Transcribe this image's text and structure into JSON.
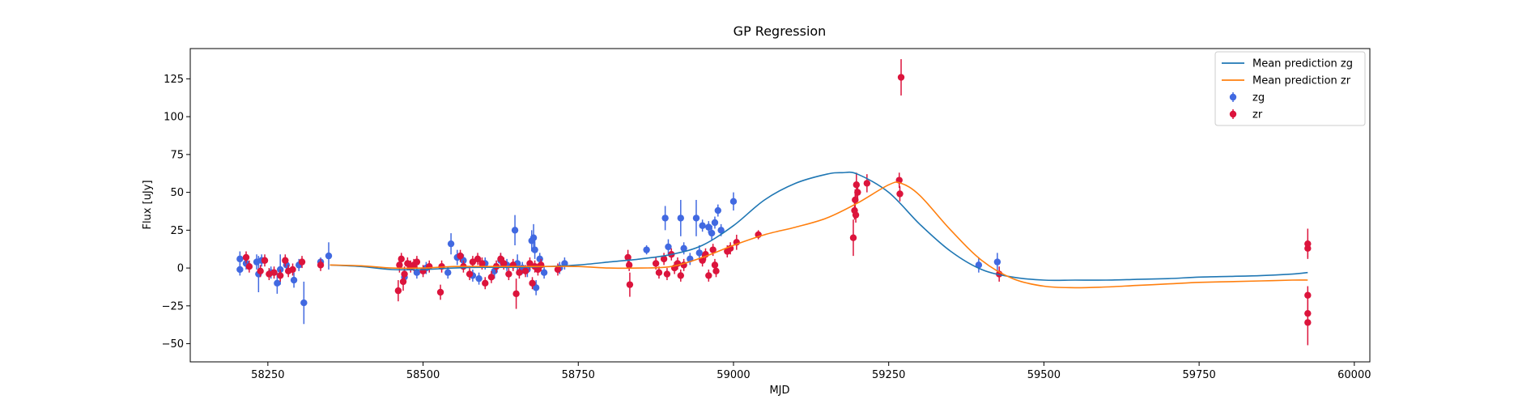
{
  "chart_data": {
    "type": "scatter",
    "title": "GP Regression",
    "xlabel": "MJD",
    "ylabel": "Flux [uJy]",
    "xlim": [
      58125,
      60025
    ],
    "ylim": [
      -62,
      145
    ],
    "xticks": [
      58250,
      58500,
      58750,
      59000,
      59250,
      59500,
      59750,
      60000
    ],
    "yticks": [
      -50,
      -25,
      0,
      25,
      50,
      75,
      100,
      125
    ],
    "grid": false,
    "legend_position": "top-right",
    "legend": [
      {
        "label": "Mean prediction zg",
        "kind": "line",
        "color": "#1f77b4"
      },
      {
        "label": "Mean prediction zr",
        "kind": "line",
        "color": "#ff7f0e"
      },
      {
        "label": "zg",
        "kind": "errorbar",
        "color": "#4169e1"
      },
      {
        "label": "zr",
        "kind": "errorbar",
        "color": "#dc143c"
      }
    ],
    "lines": [
      {
        "name": "Mean prediction zg",
        "color": "#1f77b4",
        "x": [
          58350,
          58400,
          58450,
          58500,
          58550,
          58600,
          58650,
          58700,
          58750,
          58800,
          58850,
          58900,
          58950,
          59000,
          59050,
          59100,
          59150,
          59175,
          59200,
          59250,
          59300,
          59350,
          59400,
          59450,
          59500,
          59550,
          59600,
          59650,
          59700,
          59750,
          59800,
          59850,
          59900,
          59925
        ],
        "y": [
          2,
          1,
          -1,
          -1,
          0,
          0.5,
          0.5,
          1,
          2,
          4,
          6,
          9,
          15,
          28,
          45,
          56,
          62,
          63,
          62,
          50,
          29,
          11,
          -1,
          -6,
          -8,
          -8,
          -8,
          -7.5,
          -7,
          -6,
          -5.5,
          -5,
          -4,
          -3
        ]
      },
      {
        "name": "Mean prediction zr",
        "color": "#ff7f0e",
        "x": [
          58350,
          58400,
          58450,
          58500,
          58550,
          58600,
          58650,
          58700,
          58750,
          58800,
          58850,
          58900,
          58950,
          59000,
          59050,
          59100,
          59150,
          59200,
          59250,
          59270,
          59300,
          59350,
          59400,
          59450,
          59500,
          59550,
          59600,
          59650,
          59700,
          59750,
          59800,
          59850,
          59900,
          59925
        ],
        "y": [
          2,
          1.5,
          0,
          0,
          1,
          1,
          1,
          1,
          1,
          0,
          0,
          1,
          7,
          15,
          22,
          27,
          33,
          43,
          55,
          56,
          48,
          25,
          5,
          -7,
          -12,
          -13,
          -12.5,
          -11.5,
          -10.5,
          -9.5,
          -9,
          -8.5,
          -8,
          -8
        ]
      }
    ],
    "series": [
      {
        "name": "zg",
        "color": "#4169e1",
        "points": [
          {
            "x": 58205,
            "y": 6,
            "err": 5
          },
          {
            "x": 58205,
            "y": -1,
            "err": 4
          },
          {
            "x": 58215,
            "y": 3,
            "err": 4
          },
          {
            "x": 58232,
            "y": 4,
            "err": 5
          },
          {
            "x": 58235,
            "y": -4,
            "err": 12
          },
          {
            "x": 58240,
            "y": 5,
            "err": 4
          },
          {
            "x": 58255,
            "y": -3,
            "err": 4
          },
          {
            "x": 58265,
            "y": -10,
            "err": 7
          },
          {
            "x": 58270,
            "y": -1,
            "err": 10
          },
          {
            "x": 58280,
            "y": 2,
            "err": 4
          },
          {
            "x": 58292,
            "y": -8,
            "err": 5
          },
          {
            "x": 58300,
            "y": 2,
            "err": 4
          },
          {
            "x": 58308,
            "y": -23,
            "err": 14
          },
          {
            "x": 58335,
            "y": 4,
            "err": 3
          },
          {
            "x": 58348,
            "y": 8,
            "err": 9
          },
          {
            "x": 58470,
            "y": -6,
            "err": 5
          },
          {
            "x": 58490,
            "y": -3,
            "err": 4
          },
          {
            "x": 58505,
            "y": 0,
            "err": 4
          },
          {
            "x": 58540,
            "y": -3,
            "err": 4
          },
          {
            "x": 58545,
            "y": 16,
            "err": 7
          },
          {
            "x": 58555,
            "y": 7,
            "err": 5
          },
          {
            "x": 58565,
            "y": 5,
            "err": 4
          },
          {
            "x": 58580,
            "y": -5,
            "err": 4
          },
          {
            "x": 58590,
            "y": -7,
            "err": 4
          },
          {
            "x": 58600,
            "y": 3,
            "err": 4
          },
          {
            "x": 58615,
            "y": -2,
            "err": 5
          },
          {
            "x": 58625,
            "y": 5,
            "err": 5
          },
          {
            "x": 58635,
            "y": 2,
            "err": 4
          },
          {
            "x": 58648,
            "y": 25,
            "err": 10
          },
          {
            "x": 58652,
            "y": 3,
            "err": 6
          },
          {
            "x": 58660,
            "y": 0,
            "err": 4
          },
          {
            "x": 58668,
            "y": -1,
            "err": 5
          },
          {
            "x": 58675,
            "y": 18,
            "err": 7
          },
          {
            "x": 58678,
            "y": 20,
            "err": 9
          },
          {
            "x": 58680,
            "y": 12,
            "err": 6
          },
          {
            "x": 58682,
            "y": -13,
            "err": 5
          },
          {
            "x": 58688,
            "y": 6,
            "err": 4
          },
          {
            "x": 58695,
            "y": -3,
            "err": 4
          },
          {
            "x": 58720,
            "y": 0,
            "err": 4
          },
          {
            "x": 58728,
            "y": 3,
            "err": 4
          },
          {
            "x": 58860,
            "y": 12,
            "err": 3
          },
          {
            "x": 58890,
            "y": 33,
            "err": 8
          },
          {
            "x": 58895,
            "y": 14,
            "err": 5
          },
          {
            "x": 58915,
            "y": 33,
            "err": 12
          },
          {
            "x": 58920,
            "y": 13,
            "err": 4
          },
          {
            "x": 58930,
            "y": 6,
            "err": 4
          },
          {
            "x": 58940,
            "y": 33,
            "err": 12
          },
          {
            "x": 58945,
            "y": 10,
            "err": 5
          },
          {
            "x": 58950,
            "y": 28,
            "err": 4
          },
          {
            "x": 58960,
            "y": 27,
            "err": 4
          },
          {
            "x": 58965,
            "y": 23,
            "err": 5
          },
          {
            "x": 58970,
            "y": 30,
            "err": 4
          },
          {
            "x": 58975,
            "y": 38,
            "err": 4
          },
          {
            "x": 58980,
            "y": 25,
            "err": 4
          },
          {
            "x": 59000,
            "y": 44,
            "err": 6
          },
          {
            "x": 59395,
            "y": 2,
            "err": 5
          },
          {
            "x": 59425,
            "y": 4,
            "err": 6
          }
        ]
      },
      {
        "name": "zr",
        "color": "#dc143c",
        "points": [
          {
            "x": 58215,
            "y": 7,
            "err": 4
          },
          {
            "x": 58220,
            "y": 1,
            "err": 4
          },
          {
            "x": 58238,
            "y": -2,
            "err": 4
          },
          {
            "x": 58245,
            "y": 5,
            "err": 4
          },
          {
            "x": 58252,
            "y": -4,
            "err": 4
          },
          {
            "x": 58260,
            "y": -3,
            "err": 4
          },
          {
            "x": 58270,
            "y": -5,
            "err": 4
          },
          {
            "x": 58278,
            "y": 5,
            "err": 4
          },
          {
            "x": 58283,
            "y": -2,
            "err": 4
          },
          {
            "x": 58290,
            "y": -1,
            "err": 4
          },
          {
            "x": 58305,
            "y": 4,
            "err": 4
          },
          {
            "x": 58335,
            "y": 2,
            "err": 4
          },
          {
            "x": 58460,
            "y": -15,
            "err": 7
          },
          {
            "x": 58462,
            "y": 2,
            "err": 5
          },
          {
            "x": 58465,
            "y": 6,
            "err": 4
          },
          {
            "x": 58468,
            "y": -9,
            "err": 6
          },
          {
            "x": 58470,
            "y": -4,
            "err": 5
          },
          {
            "x": 58475,
            "y": 3,
            "err": 4
          },
          {
            "x": 58480,
            "y": 1,
            "err": 4
          },
          {
            "x": 58485,
            "y": 2,
            "err": 4
          },
          {
            "x": 58490,
            "y": 4,
            "err": 4
          },
          {
            "x": 58500,
            "y": -2,
            "err": 4
          },
          {
            "x": 58510,
            "y": 1,
            "err": 4
          },
          {
            "x": 58528,
            "y": -16,
            "err": 5
          },
          {
            "x": 58530,
            "y": 1,
            "err": 4
          },
          {
            "x": 58560,
            "y": 8,
            "err": 4
          },
          {
            "x": 58565,
            "y": 1,
            "err": 4
          },
          {
            "x": 58575,
            "y": -4,
            "err": 4
          },
          {
            "x": 58580,
            "y": 4,
            "err": 4
          },
          {
            "x": 58588,
            "y": 6,
            "err": 4
          },
          {
            "x": 58595,
            "y": 3,
            "err": 4
          },
          {
            "x": 58600,
            "y": -10,
            "err": 4
          },
          {
            "x": 58610,
            "y": -6,
            "err": 4
          },
          {
            "x": 58618,
            "y": 1,
            "err": 4
          },
          {
            "x": 58625,
            "y": 6,
            "err": 4
          },
          {
            "x": 58630,
            "y": 3,
            "err": 4
          },
          {
            "x": 58638,
            "y": -4,
            "err": 4
          },
          {
            "x": 58645,
            "y": 2,
            "err": 4
          },
          {
            "x": 58650,
            "y": -17,
            "err": 10
          },
          {
            "x": 58655,
            "y": -3,
            "err": 4
          },
          {
            "x": 58665,
            "y": -2,
            "err": 4
          },
          {
            "x": 58672,
            "y": 3,
            "err": 4
          },
          {
            "x": 58676,
            "y": -10,
            "err": 4
          },
          {
            "x": 58680,
            "y": 1,
            "err": 4
          },
          {
            "x": 58685,
            "y": -1,
            "err": 4
          },
          {
            "x": 58690,
            "y": 2,
            "err": 4
          },
          {
            "x": 58717,
            "y": -1,
            "err": 4
          },
          {
            "x": 58830,
            "y": 7,
            "err": 5
          },
          {
            "x": 58832,
            "y": 2,
            "err": 4
          },
          {
            "x": 58833,
            "y": -11,
            "err": 8
          },
          {
            "x": 58875,
            "y": 3,
            "err": 4
          },
          {
            "x": 58880,
            "y": -3,
            "err": 4
          },
          {
            "x": 58888,
            "y": 6,
            "err": 4
          },
          {
            "x": 58893,
            "y": -4,
            "err": 4
          },
          {
            "x": 58900,
            "y": 9,
            "err": 4
          },
          {
            "x": 58905,
            "y": 0,
            "err": 4
          },
          {
            "x": 58910,
            "y": 3,
            "err": 4
          },
          {
            "x": 58915,
            "y": -5,
            "err": 4
          },
          {
            "x": 58920,
            "y": 2,
            "err": 4
          },
          {
            "x": 58950,
            "y": 5,
            "err": 4
          },
          {
            "x": 58955,
            "y": 9,
            "err": 4
          },
          {
            "x": 58960,
            "y": -5,
            "err": 4
          },
          {
            "x": 58967,
            "y": 12,
            "err": 4
          },
          {
            "x": 58970,
            "y": 2,
            "err": 4
          },
          {
            "x": 58972,
            "y": -2,
            "err": 4
          },
          {
            "x": 58990,
            "y": 11,
            "err": 4
          },
          {
            "x": 58995,
            "y": 13,
            "err": 4
          },
          {
            "x": 59005,
            "y": 17,
            "err": 5
          },
          {
            "x": 59040,
            "y": 22,
            "err": 3
          },
          {
            "x": 59193,
            "y": 20,
            "err": 12
          },
          {
            "x": 59195,
            "y": 38,
            "err": 6
          },
          {
            "x": 59196,
            "y": 45,
            "err": 7
          },
          {
            "x": 59197,
            "y": 35,
            "err": 5
          },
          {
            "x": 59198,
            "y": 55,
            "err": 8
          },
          {
            "x": 59200,
            "y": 50,
            "err": 6
          },
          {
            "x": 59215,
            "y": 56,
            "err": 6
          },
          {
            "x": 59267,
            "y": 58,
            "err": 5
          },
          {
            "x": 59268,
            "y": 49,
            "err": 5
          },
          {
            "x": 59270,
            "y": 126,
            "err": 12
          },
          {
            "x": 59428,
            "y": -4,
            "err": 5
          },
          {
            "x": 59925,
            "y": 13,
            "err": 6
          },
          {
            "x": 59925,
            "y": 16,
            "err": 10
          },
          {
            "x": 59925,
            "y": -18,
            "err": 6
          },
          {
            "x": 59925,
            "y": -30,
            "err": 6
          },
          {
            "x": 59925,
            "y": -36,
            "err": 15
          }
        ]
      }
    ]
  }
}
